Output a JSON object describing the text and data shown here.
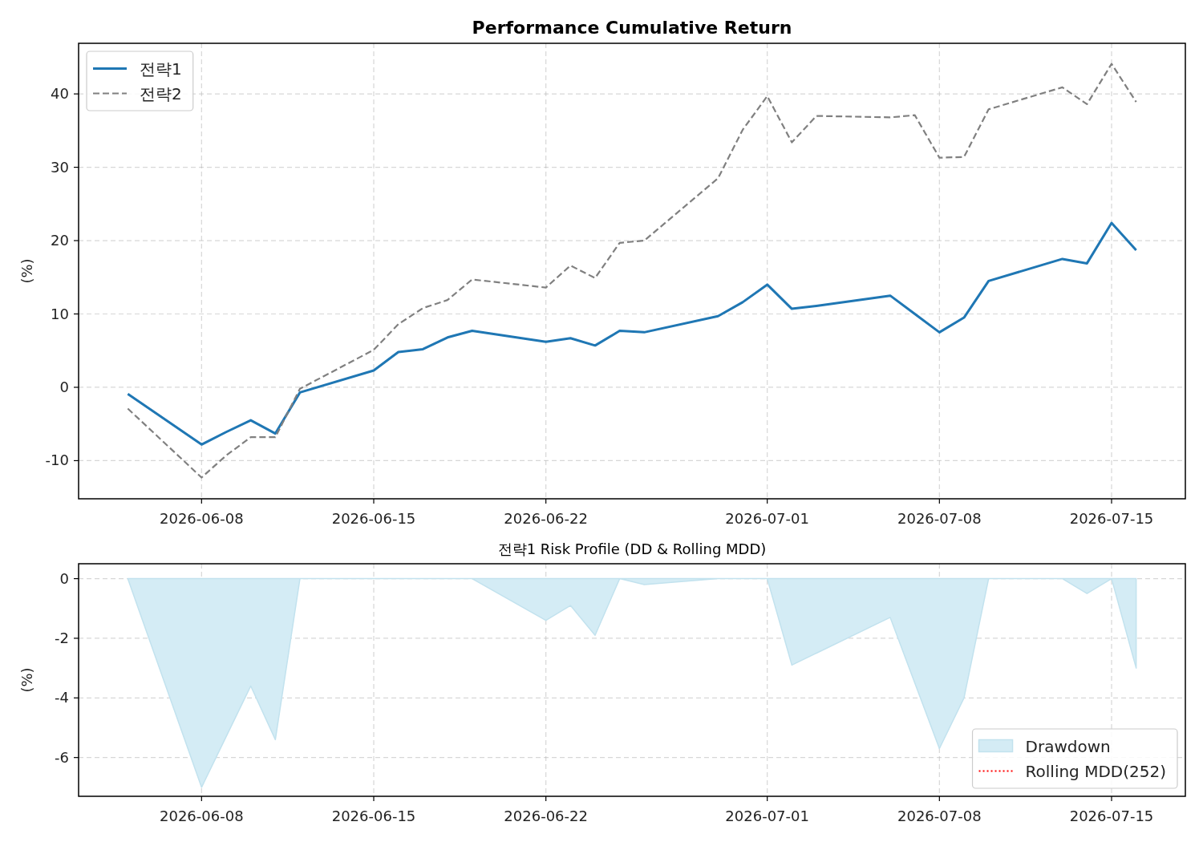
{
  "chart_data": [
    {
      "type": "line",
      "title": "Performance Cumulative Return",
      "ylabel": "(%)",
      "x": [
        "2026-06-05",
        "2026-06-08",
        "2026-06-09",
        "2026-06-10",
        "2026-06-11",
        "2026-06-12",
        "2026-06-15",
        "2026-06-16",
        "2026-06-17",
        "2026-06-18",
        "2026-06-19",
        "2026-06-22",
        "2026-06-23",
        "2026-06-24",
        "2026-06-25",
        "2026-06-26",
        "2026-06-29",
        "2026-06-30",
        "2026-07-01",
        "2026-07-02",
        "2026-07-03",
        "2026-07-06",
        "2026-07-07",
        "2026-07-08",
        "2026-07-09",
        "2026-07-10",
        "2026-07-13",
        "2026-07-14",
        "2026-07-15",
        "2026-07-16"
      ],
      "series": [
        {
          "name": "전략1",
          "color": "#1f77b4",
          "line_style": "solid",
          "values": [
            -0.9,
            -7.8,
            -6.1,
            -4.5,
            -6.3,
            -0.7,
            2.3,
            4.8,
            5.2,
            6.8,
            7.7,
            6.2,
            6.7,
            5.7,
            7.7,
            7.5,
            9.7,
            11.6,
            14.0,
            10.7,
            11.1,
            12.5,
            10.0,
            7.5,
            9.5,
            14.5,
            17.5,
            16.9,
            22.4,
            18.7
          ]
        },
        {
          "name": "전략2",
          "color": "#808080",
          "line_style": "dashed",
          "values": [
            -2.9,
            -12.3,
            -9.3,
            -6.8,
            -6.8,
            -0.2,
            5.1,
            8.6,
            10.8,
            11.9,
            14.7,
            13.6,
            16.6,
            14.9,
            19.7,
            20.0,
            28.5,
            35.1,
            39.7,
            33.4,
            37.0,
            36.8,
            37.1,
            31.3,
            31.4,
            37.9,
            40.9,
            38.6,
            44.1,
            38.9
          ]
        }
      ],
      "xlim": [
        "2026-06-03",
        "2026-07-18"
      ],
      "ylim": [
        -15.2,
        46.9
      ],
      "xticks": [
        "2026-06-08",
        "2026-06-15",
        "2026-06-22",
        "2026-07-01",
        "2026-07-08",
        "2026-07-15"
      ],
      "yticks": [
        -10,
        0,
        10,
        20,
        30,
        40
      ],
      "grid": true,
      "legend": "top left"
    },
    {
      "type": "area",
      "title": "전략1 Risk Profile (DD & Rolling MDD)",
      "ylabel": "(%)",
      "x": [
        "2026-06-05",
        "2026-06-08",
        "2026-06-09",
        "2026-06-10",
        "2026-06-11",
        "2026-06-12",
        "2026-06-15",
        "2026-06-16",
        "2026-06-17",
        "2026-06-18",
        "2026-06-19",
        "2026-06-22",
        "2026-06-23",
        "2026-06-24",
        "2026-06-25",
        "2026-06-26",
        "2026-06-29",
        "2026-06-30",
        "2026-07-01",
        "2026-07-02",
        "2026-07-03",
        "2026-07-06",
        "2026-07-07",
        "2026-07-08",
        "2026-07-09",
        "2026-07-10",
        "2026-07-13",
        "2026-07-14",
        "2026-07-15",
        "2026-07-16"
      ],
      "series": [
        {
          "name": "Drawdown",
          "color": "#d4ecf5",
          "values": [
            0,
            -7.0,
            -5.3,
            -3.6,
            -5.4,
            0,
            0,
            0,
            0,
            0,
            0,
            -1.4,
            -0.9,
            -1.9,
            0,
            -0.2,
            0,
            0,
            0,
            -2.9,
            -2.5,
            -1.3,
            -3.5,
            -5.7,
            -4.0,
            0,
            0,
            -0.5,
            0,
            -3.0
          ]
        },
        {
          "name": "Rolling MDD(252)",
          "type": "line",
          "color": "#ff0000",
          "line_style": "dotted",
          "values": [
            null,
            null,
            null,
            null,
            null,
            null,
            null,
            null,
            null,
            null,
            null,
            null,
            null,
            null,
            null,
            null,
            null,
            null,
            null,
            null,
            null,
            null,
            null,
            null,
            null,
            null,
            null,
            null,
            null,
            null
          ]
        }
      ],
      "xlim": [
        "2026-06-03",
        "2026-07-18"
      ],
      "ylim": [
        -7.3,
        0.5
      ],
      "xticks": [
        "2026-06-08",
        "2026-06-15",
        "2026-06-22",
        "2026-07-01",
        "2026-07-08",
        "2026-07-15"
      ],
      "yticks": [
        -6,
        -4,
        -2,
        0
      ],
      "grid": true,
      "legend": "bottom right"
    }
  ]
}
